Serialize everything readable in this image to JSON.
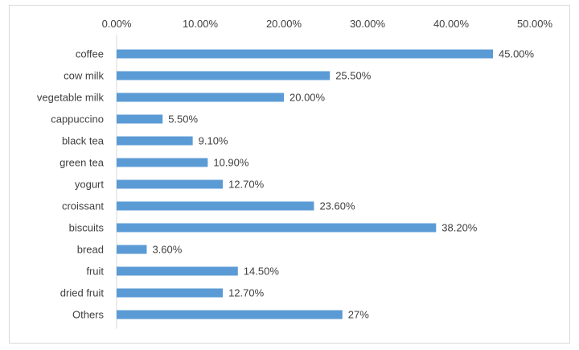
{
  "chart_data": {
    "type": "bar",
    "orientation": "horizontal",
    "title": "",
    "xlabel": "",
    "ylabel": "",
    "xlim": [
      0,
      50
    ],
    "x_ticks": [
      "0.00%",
      "10.00%",
      "20.00%",
      "30.00%",
      "40.00%",
      "50.00%"
    ],
    "x_axis_position": "top",
    "grid": false,
    "legend": "none",
    "bar_color": "#5b9bd5",
    "categories": [
      "coffee",
      "cow milk",
      "vegetable milk",
      "cappuccino",
      "black tea",
      "green tea",
      "yogurt",
      "croissant",
      "biscuits",
      "bread",
      "fruit",
      "dried fruit",
      "Others"
    ],
    "values": [
      45.0,
      25.5,
      20.0,
      5.5,
      9.1,
      10.9,
      12.7,
      23.6,
      38.2,
      3.6,
      14.5,
      12.7,
      27
    ],
    "data_labels": [
      "45.00%",
      "25.50%",
      "20.00%",
      "5.50%",
      "9.10%",
      "10.90%",
      "12.70%",
      "23.60%",
      "38.20%",
      "3.60%",
      "14.50%",
      "12.70%",
      "27%"
    ]
  }
}
